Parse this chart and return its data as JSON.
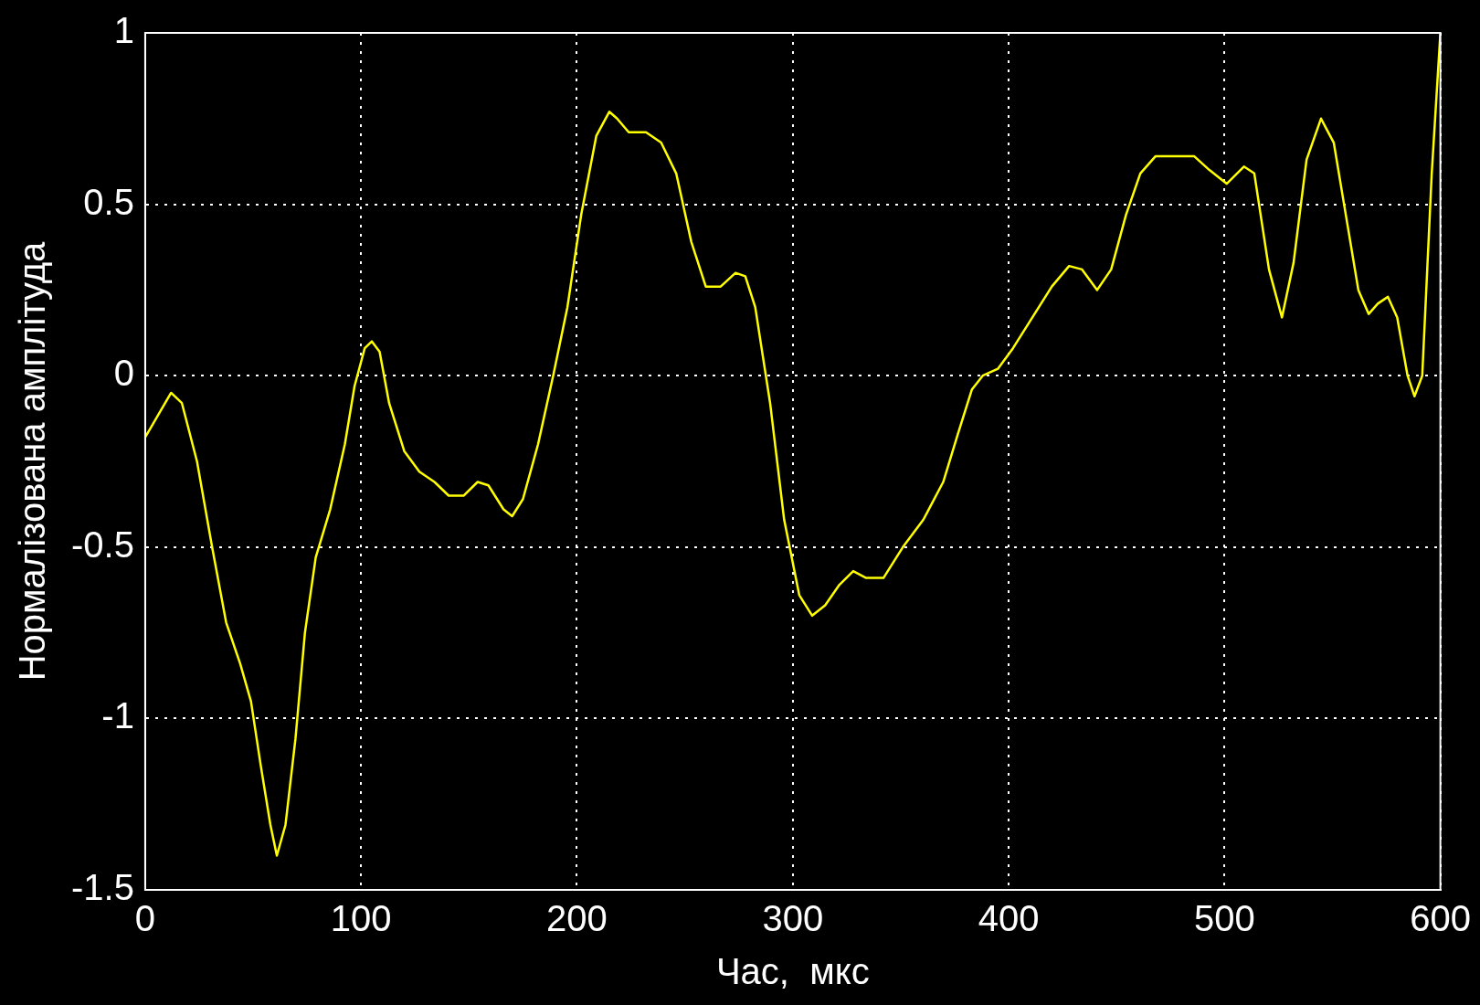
{
  "chart_data": {
    "type": "line",
    "xlabel": "Час,  мкс",
    "ylabel": "Нормалізована амплітуда",
    "xlim": [
      0,
      600
    ],
    "xticks": [
      0,
      100,
      200,
      300,
      400,
      500,
      600
    ],
    "ylim": [
      -1.5,
      1
    ],
    "yticks": [
      -1.5,
      -1,
      -0.5,
      0,
      0.5,
      1
    ],
    "grid": true,
    "legend": false,
    "marker": "none",
    "line_style": "solid",
    "series": [
      {
        "color": "#ffff00",
        "x": [
          0,
          12,
          17,
          24,
          31,
          37.5,
          44,
          49,
          53.6,
          58,
          61,
          65,
          69.6,
          74,
          79,
          85.7,
          92.5,
          97,
          101.7,
          105,
          108.6,
          113,
          120,
          127,
          134,
          140.6,
          147.5,
          154,
          159,
          166,
          170,
          175,
          182,
          189,
          195.6,
          202,
          209,
          215,
          218.6,
          224,
          232,
          239,
          246,
          253,
          259.7,
          266.6,
          273.5,
          278,
          282.6,
          289.5,
          296,
          303,
          309,
          315,
          321.6,
          328,
          334,
          342,
          351,
          360.5,
          369.7,
          376.5,
          383,
          388,
          395,
          402,
          411,
          420,
          428,
          434,
          441,
          447.5,
          454.4,
          461,
          468,
          475,
          486,
          493,
          501,
          509,
          513.8,
          520.6,
          526.6,
          532,
          538,
          544.7,
          550.6,
          557.5,
          562,
          566.8,
          571,
          575.7,
          580,
          584.8,
          588,
          591.6,
          596,
          600
        ],
        "values": [
          -0.18,
          -0.05,
          -0.08,
          -0.25,
          -0.5,
          -0.72,
          -0.84,
          -0.95,
          -1.14,
          -1.31,
          -1.4,
          -1.31,
          -1.06,
          -0.75,
          -0.53,
          -0.39,
          -0.2,
          -0.03,
          0.08,
          0.1,
          0.07,
          -0.08,
          -0.22,
          -0.28,
          -0.31,
          -0.35,
          -0.35,
          -0.31,
          -0.32,
          -0.39,
          -0.41,
          -0.36,
          -0.2,
          0,
          0.2,
          0.47,
          0.7,
          0.77,
          0.75,
          0.71,
          0.71,
          0.68,
          0.59,
          0.39,
          0.26,
          0.26,
          0.3,
          0.29,
          0.2,
          -0.08,
          -0.42,
          -0.64,
          -0.7,
          -0.67,
          -0.61,
          -0.57,
          -0.59,
          -0.59,
          -0.5,
          -0.42,
          -0.31,
          -0.17,
          -0.04,
          0,
          0.02,
          0.08,
          0.17,
          0.26,
          0.32,
          0.31,
          0.25,
          0.31,
          0.47,
          0.59,
          0.64,
          0.64,
          0.64,
          0.6,
          0.56,
          0.61,
          0.59,
          0.31,
          0.17,
          0.33,
          0.63,
          0.75,
          0.68,
          0.42,
          0.25,
          0.18,
          0.21,
          0.23,
          0.17,
          0,
          -0.06,
          0,
          0.59,
          1.0
        ]
      }
    ]
  }
}
